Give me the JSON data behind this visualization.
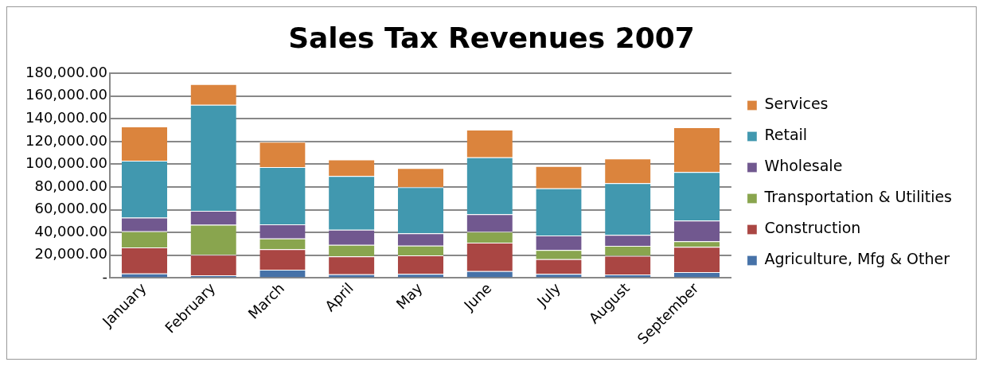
{
  "chart_data": {
    "type": "bar",
    "title": "Sales Tax Revenues 2007",
    "stacked": true,
    "legend": "right",
    "grid": "y",
    "categories": [
      "January",
      "February",
      "March",
      "April",
      "May",
      "June",
      "July",
      "August",
      "September"
    ],
    "ylim": [
      0,
      180000
    ],
    "yticks": [
      {
        "value": 0,
        "label": "-"
      },
      {
        "value": 20000,
        "label": "20,000.00"
      },
      {
        "value": 40000,
        "label": "40,000.00"
      },
      {
        "value": 60000,
        "label": "60,000.00"
      },
      {
        "value": 80000,
        "label": "80,000.00"
      },
      {
        "value": 100000,
        "label": "100,000.00"
      },
      {
        "value": 120000,
        "label": "120,000.00"
      },
      {
        "value": 140000,
        "label": "140,000.00"
      },
      {
        "value": 160000,
        "label": "160,000.00"
      },
      {
        "value": 180000,
        "label": "180,000.00"
      }
    ],
    "series": [
      {
        "name": "Agriculture, Mfg & Other",
        "color": "#4672a8",
        "values": [
          4000,
          2400,
          7300,
          3200,
          3500,
          6000,
          3500,
          3000,
          5100
        ]
      },
      {
        "name": "Construction",
        "color": "#aa4643",
        "values": [
          22800,
          17900,
          17900,
          15700,
          16300,
          25100,
          13000,
          16500,
          22200
        ]
      },
      {
        "name": "Transportation & Utilities",
        "color": "#89a54e",
        "values": [
          14300,
          26500,
          9500,
          10300,
          8600,
          9500,
          8100,
          8700,
          4900
        ]
      },
      {
        "name": "Wholesale",
        "color": "#71588f",
        "values": [
          12000,
          12200,
          12400,
          13300,
          10900,
          15400,
          12800,
          9700,
          18200
        ]
      },
      {
        "name": "Retail",
        "color": "#4198af",
        "values": [
          50000,
          93400,
          50400,
          47100,
          40600,
          50100,
          41400,
          45500,
          42700
        ]
      },
      {
        "name": "Services",
        "color": "#db843d",
        "values": [
          30100,
          18100,
          22200,
          14600,
          16700,
          24400,
          19700,
          21600,
          39500
        ]
      }
    ]
  }
}
